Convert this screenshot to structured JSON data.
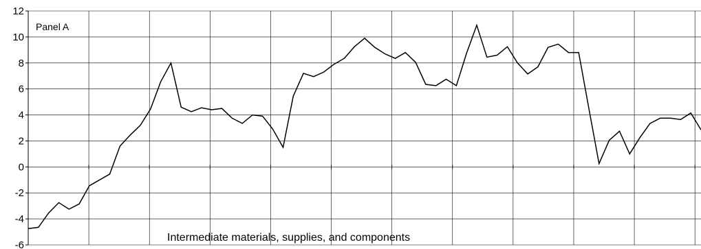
{
  "chart_data": {
    "type": "line",
    "title": "",
    "panel_label": "Panel A",
    "caption": "Intermediate materials, supplies, and components",
    "xlabel": "",
    "ylabel": "",
    "ylim": [
      -6,
      12
    ],
    "y_ticks": [
      12,
      10,
      8,
      6,
      4,
      2,
      0,
      -2,
      -4,
      -6
    ],
    "y_tick_labels": [
      "12",
      "10",
      "8",
      "6",
      "4",
      "2",
      "0",
      "-2",
      "-4",
      "-6"
    ],
    "grid": true,
    "x_grid_count": 11,
    "series": [
      {
        "color": "#000000",
        "values": [
          -4.75,
          -4.65,
          -3.55,
          -2.75,
          -3.25,
          -2.85,
          -1.45,
          -1.0,
          -0.55,
          1.6,
          2.45,
          3.2,
          4.45,
          6.55,
          8.0,
          4.6,
          4.25,
          4.55,
          4.4,
          4.5,
          3.75,
          3.35,
          4.0,
          3.9,
          2.9,
          1.5,
          5.45,
          7.2,
          6.95,
          7.3,
          7.9,
          8.35,
          9.25,
          9.9,
          9.2,
          8.7,
          8.35,
          8.8,
          8.05,
          6.35,
          6.25,
          6.75,
          6.25,
          8.75,
          10.9,
          8.45,
          8.6,
          9.25,
          8.0,
          7.15,
          7.7,
          9.2,
          9.45,
          8.8,
          8.8,
          4.5,
          0.25,
          2.05,
          2.75,
          1.0,
          2.25,
          3.35,
          3.75,
          3.75,
          3.65,
          4.15,
          2.85
        ]
      }
    ]
  }
}
